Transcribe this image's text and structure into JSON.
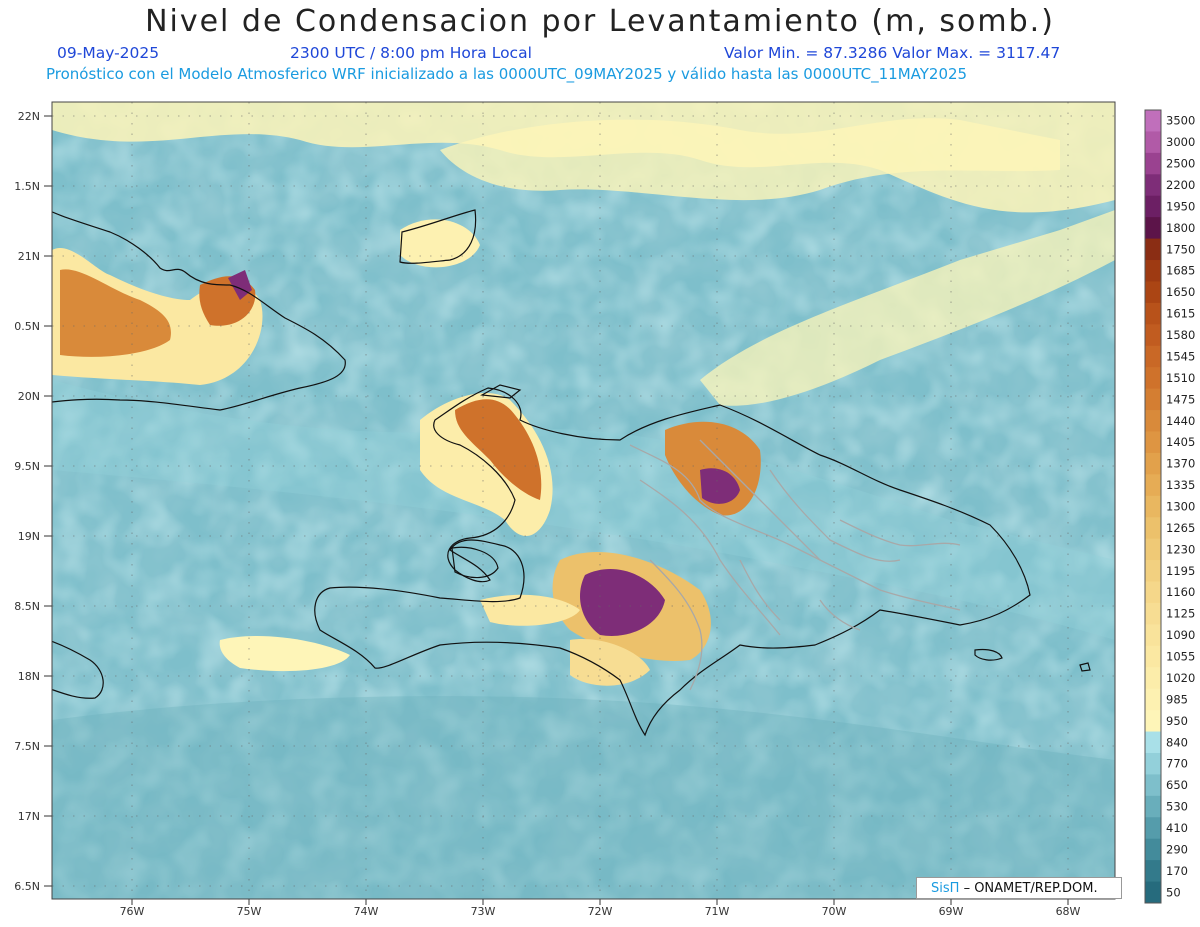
{
  "header": {
    "title": "Nivel de Condensacion por Levantamiento (m, somb.)",
    "date": "09-May-2025",
    "time": "2300 UTC / 8:00 pm Hora Local",
    "min_max": "Valor Min. = 87.3286  Valor Max. = 3117.47",
    "forecast": "Pronóstico con el Modelo Atmosferico WRF inicializado a las 0000UTC_09MAY2025 y válido hasta las  0000UTC_11MAY2025"
  },
  "axes": {
    "lat_labels": [
      "22N",
      "1.5N",
      "21N",
      "0.5N",
      "20N",
      "9.5N",
      "19N",
      "8.5N",
      "18N",
      "7.5N",
      "17N",
      "6.5N"
    ],
    "lon_labels": [
      "76W",
      "75W",
      "74W",
      "73W",
      "72W",
      "71W",
      "70W",
      "69W",
      "68W"
    ]
  },
  "colorbar": {
    "levels": [
      "3500",
      "3000",
      "2500",
      "2200",
      "1950",
      "1800",
      "1750",
      "1685",
      "1650",
      "1615",
      "1580",
      "1545",
      "1510",
      "1475",
      "1440",
      "1405",
      "1370",
      "1335",
      "1300",
      "1265",
      "1230",
      "1195",
      "1160",
      "1125",
      "1090",
      "1055",
      "1020",
      "985",
      "950",
      "840",
      "770",
      "650",
      "530",
      "410",
      "290",
      "170",
      "50"
    ],
    "colors": [
      "#c06fbb",
      "#b15aa7",
      "#9a4290",
      "#7e2d78",
      "#6c1f64",
      "#5c1449",
      "#8a2d14",
      "#9e3a12",
      "#ab4514",
      "#b8521a",
      "#c15c20",
      "#c96826",
      "#cf722b",
      "#d47e32",
      "#d98a3a",
      "#de9542",
      "#e2a14b",
      "#e6ac55",
      "#e9b760",
      "#ecc16b",
      "#efc976",
      "#f2d080",
      "#f5d78a",
      "#f7dd93",
      "#f9e39b",
      "#fbe8a2",
      "#fcedaa",
      "#fdf1b1",
      "#fef5b8",
      "#a9e0e8",
      "#93d0da",
      "#7ebfcb",
      "#69aebb",
      "#559cab",
      "#438b9b",
      "#337a8b",
      "#266b7d"
    ]
  },
  "credit": {
    "brand": "SisΠ",
    "text": "– ONAMET/REP.DOM."
  }
}
